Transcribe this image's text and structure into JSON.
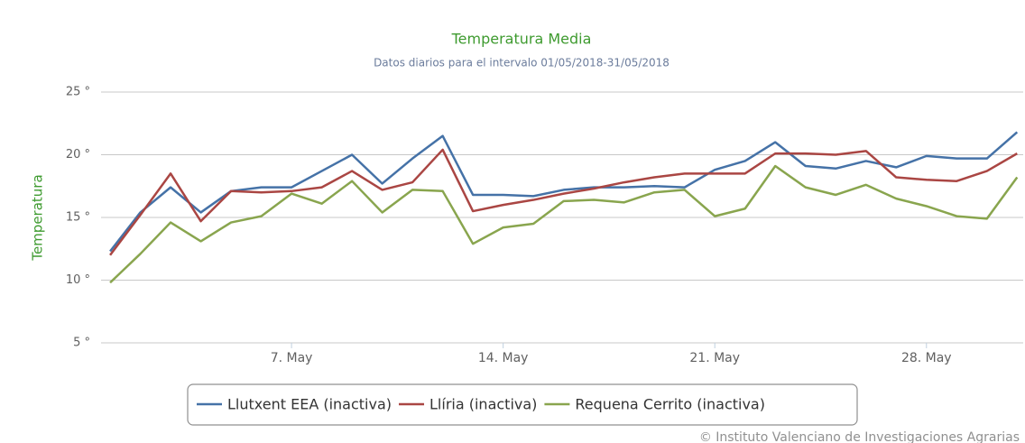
{
  "chart_data": {
    "type": "line",
    "title": "Temperatura Media",
    "subtitle": "Datos diarios para el intervalo 01/05/2018-31/05/2018",
    "y_axis_label": "Temperatura",
    "credit": "© Instituto Valenciano de Investigaciones Agrarias",
    "x": [
      1,
      2,
      3,
      4,
      5,
      6,
      7,
      8,
      9,
      10,
      11,
      12,
      13,
      14,
      15,
      16,
      17,
      18,
      19,
      20,
      21,
      22,
      23,
      24,
      25,
      26,
      27,
      28,
      29,
      30,
      31
    ],
    "xlim": [
      0.7,
      31.2
    ],
    "xticks": [
      {
        "value": 7,
        "label": "7. May"
      },
      {
        "value": 14,
        "label": "14. May"
      },
      {
        "value": 21,
        "label": "21. May"
      },
      {
        "value": 28,
        "label": "28. May"
      }
    ],
    "ylim": [
      5,
      25
    ],
    "yticks": [
      {
        "value": 5,
        "label": "5 °"
      },
      {
        "value": 10,
        "label": "10 °"
      },
      {
        "value": 15,
        "label": "15 °"
      },
      {
        "value": 20,
        "label": "20 °"
      },
      {
        "value": 25,
        "label": "25 °"
      }
    ],
    "grid": true,
    "legend": "bottom",
    "series": [
      {
        "name": "Llutxent EEA (inactiva)",
        "color": "#4572a7",
        "values": [
          12.3,
          15.4,
          17.4,
          15.4,
          17.1,
          17.4,
          17.4,
          18.7,
          20.0,
          17.7,
          19.7,
          21.5,
          16.8,
          16.8,
          16.7,
          17.2,
          17.4,
          17.4,
          17.5,
          17.4,
          18.8,
          19.5,
          21.0,
          19.1,
          18.9,
          19.5,
          19.0,
          19.9,
          19.7,
          19.7,
          21.8
        ]
      },
      {
        "name": "Llíria (inactiva)",
        "color": "#aa4643",
        "values": [
          12.0,
          15.2,
          18.5,
          14.7,
          17.1,
          17.0,
          17.1,
          17.4,
          18.7,
          17.2,
          17.8,
          20.4,
          15.5,
          16.0,
          16.4,
          16.9,
          17.3,
          17.8,
          18.2,
          18.5,
          18.5,
          18.5,
          20.1,
          20.1,
          20.0,
          20.3,
          18.2,
          18.0,
          17.9,
          18.7,
          20.1
        ]
      },
      {
        "name": "Requena Cerrito (inactiva)",
        "color": "#89a54e",
        "values": [
          9.8,
          12.1,
          14.6,
          13.1,
          14.6,
          15.1,
          16.9,
          16.1,
          17.9,
          15.4,
          17.2,
          17.1,
          12.9,
          14.2,
          14.5,
          16.3,
          16.4,
          16.2,
          17.0,
          17.2,
          15.1,
          15.7,
          19.1,
          17.4,
          16.8,
          17.6,
          16.5,
          15.9,
          15.1,
          14.9,
          18.2
        ]
      }
    ]
  }
}
